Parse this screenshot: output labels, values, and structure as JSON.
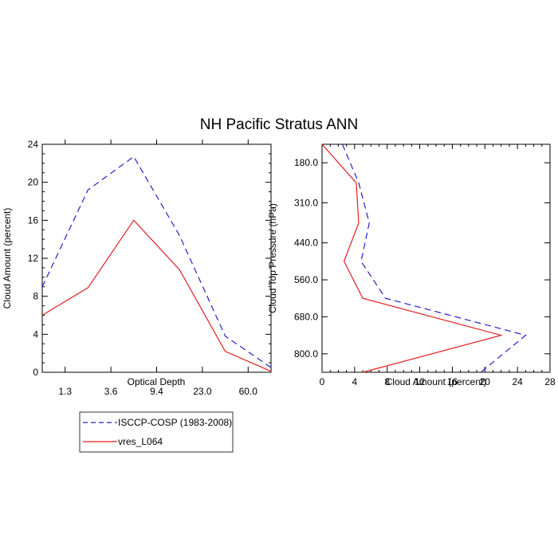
{
  "title": "NH Pacific Stratus ANN",
  "colors": {
    "isccp": "#2222cc",
    "model": "#e02020",
    "axis": "#000000"
  },
  "chart_data": [
    {
      "type": "line",
      "xlabel": "Optical Depth",
      "ylabel": "Cloud Amount (percent)",
      "x_index": [
        0,
        1,
        2,
        3,
        4,
        5
      ],
      "xtick_labels": [
        "1.3",
        "3.6",
        "9.4",
        "23.0",
        "60.0"
      ],
      "xtick_index": [
        0.5,
        1.5,
        2.5,
        3.5,
        4.5
      ],
      "xlim": [
        0,
        5
      ],
      "ylim": [
        0,
        24
      ],
      "yticks": [
        0,
        4,
        8,
        12,
        16,
        20,
        24
      ],
      "ytick_labels": [
        "0",
        "4",
        "8",
        "12",
        "16",
        "20",
        "24"
      ],
      "series": [
        {
          "name": "ISCCP-COSP (1983-2008)",
          "style": "dashed",
          "values": [
            9.0,
            19.2,
            22.7,
            14.4,
            3.8,
            0.5
          ]
        },
        {
          "name": "vres_L064",
          "style": "solid",
          "values": [
            6.0,
            8.9,
            16.0,
            10.8,
            2.2,
            0.1
          ]
        }
      ]
    },
    {
      "type": "line",
      "xlabel": "Cloud Amount (percent)",
      "ylabel": "Cloud Top Pressure (hPa)",
      "xlim": [
        0,
        28
      ],
      "xticks": [
        0,
        4,
        8,
        12,
        16,
        20,
        24,
        28
      ],
      "xtick_labels": [
        "0",
        "4",
        "8",
        "12",
        "16",
        "20",
        "24",
        "28"
      ],
      "ylim": [
        120,
        860
      ],
      "yticks": [
        180,
        310,
        440,
        560,
        680,
        800
      ],
      "ytick_labels": [
        "180.0",
        "310.0",
        "440.0",
        "560.0",
        "680.0",
        "800.0"
      ],
      "pressure": [
        120,
        245,
        375,
        500,
        620,
        740,
        860
      ],
      "series": [
        {
          "name": "ISCCP-COSP (1983-2008)",
          "style": "dashed",
          "values": [
            2.5,
            4.5,
            5.8,
            4.8,
            7.8,
            25.0,
            19.5
          ]
        },
        {
          "name": "vres_L064",
          "style": "solid",
          "values": [
            0.0,
            4.2,
            4.5,
            2.7,
            5.0,
            22.0,
            5.0
          ]
        }
      ]
    }
  ],
  "legend": {
    "position": "bottom-left",
    "entries": [
      {
        "label": "ISCCP-COSP (1983-2008)",
        "style": "dashed"
      },
      {
        "label": "vres_L064",
        "style": "solid"
      }
    ]
  }
}
